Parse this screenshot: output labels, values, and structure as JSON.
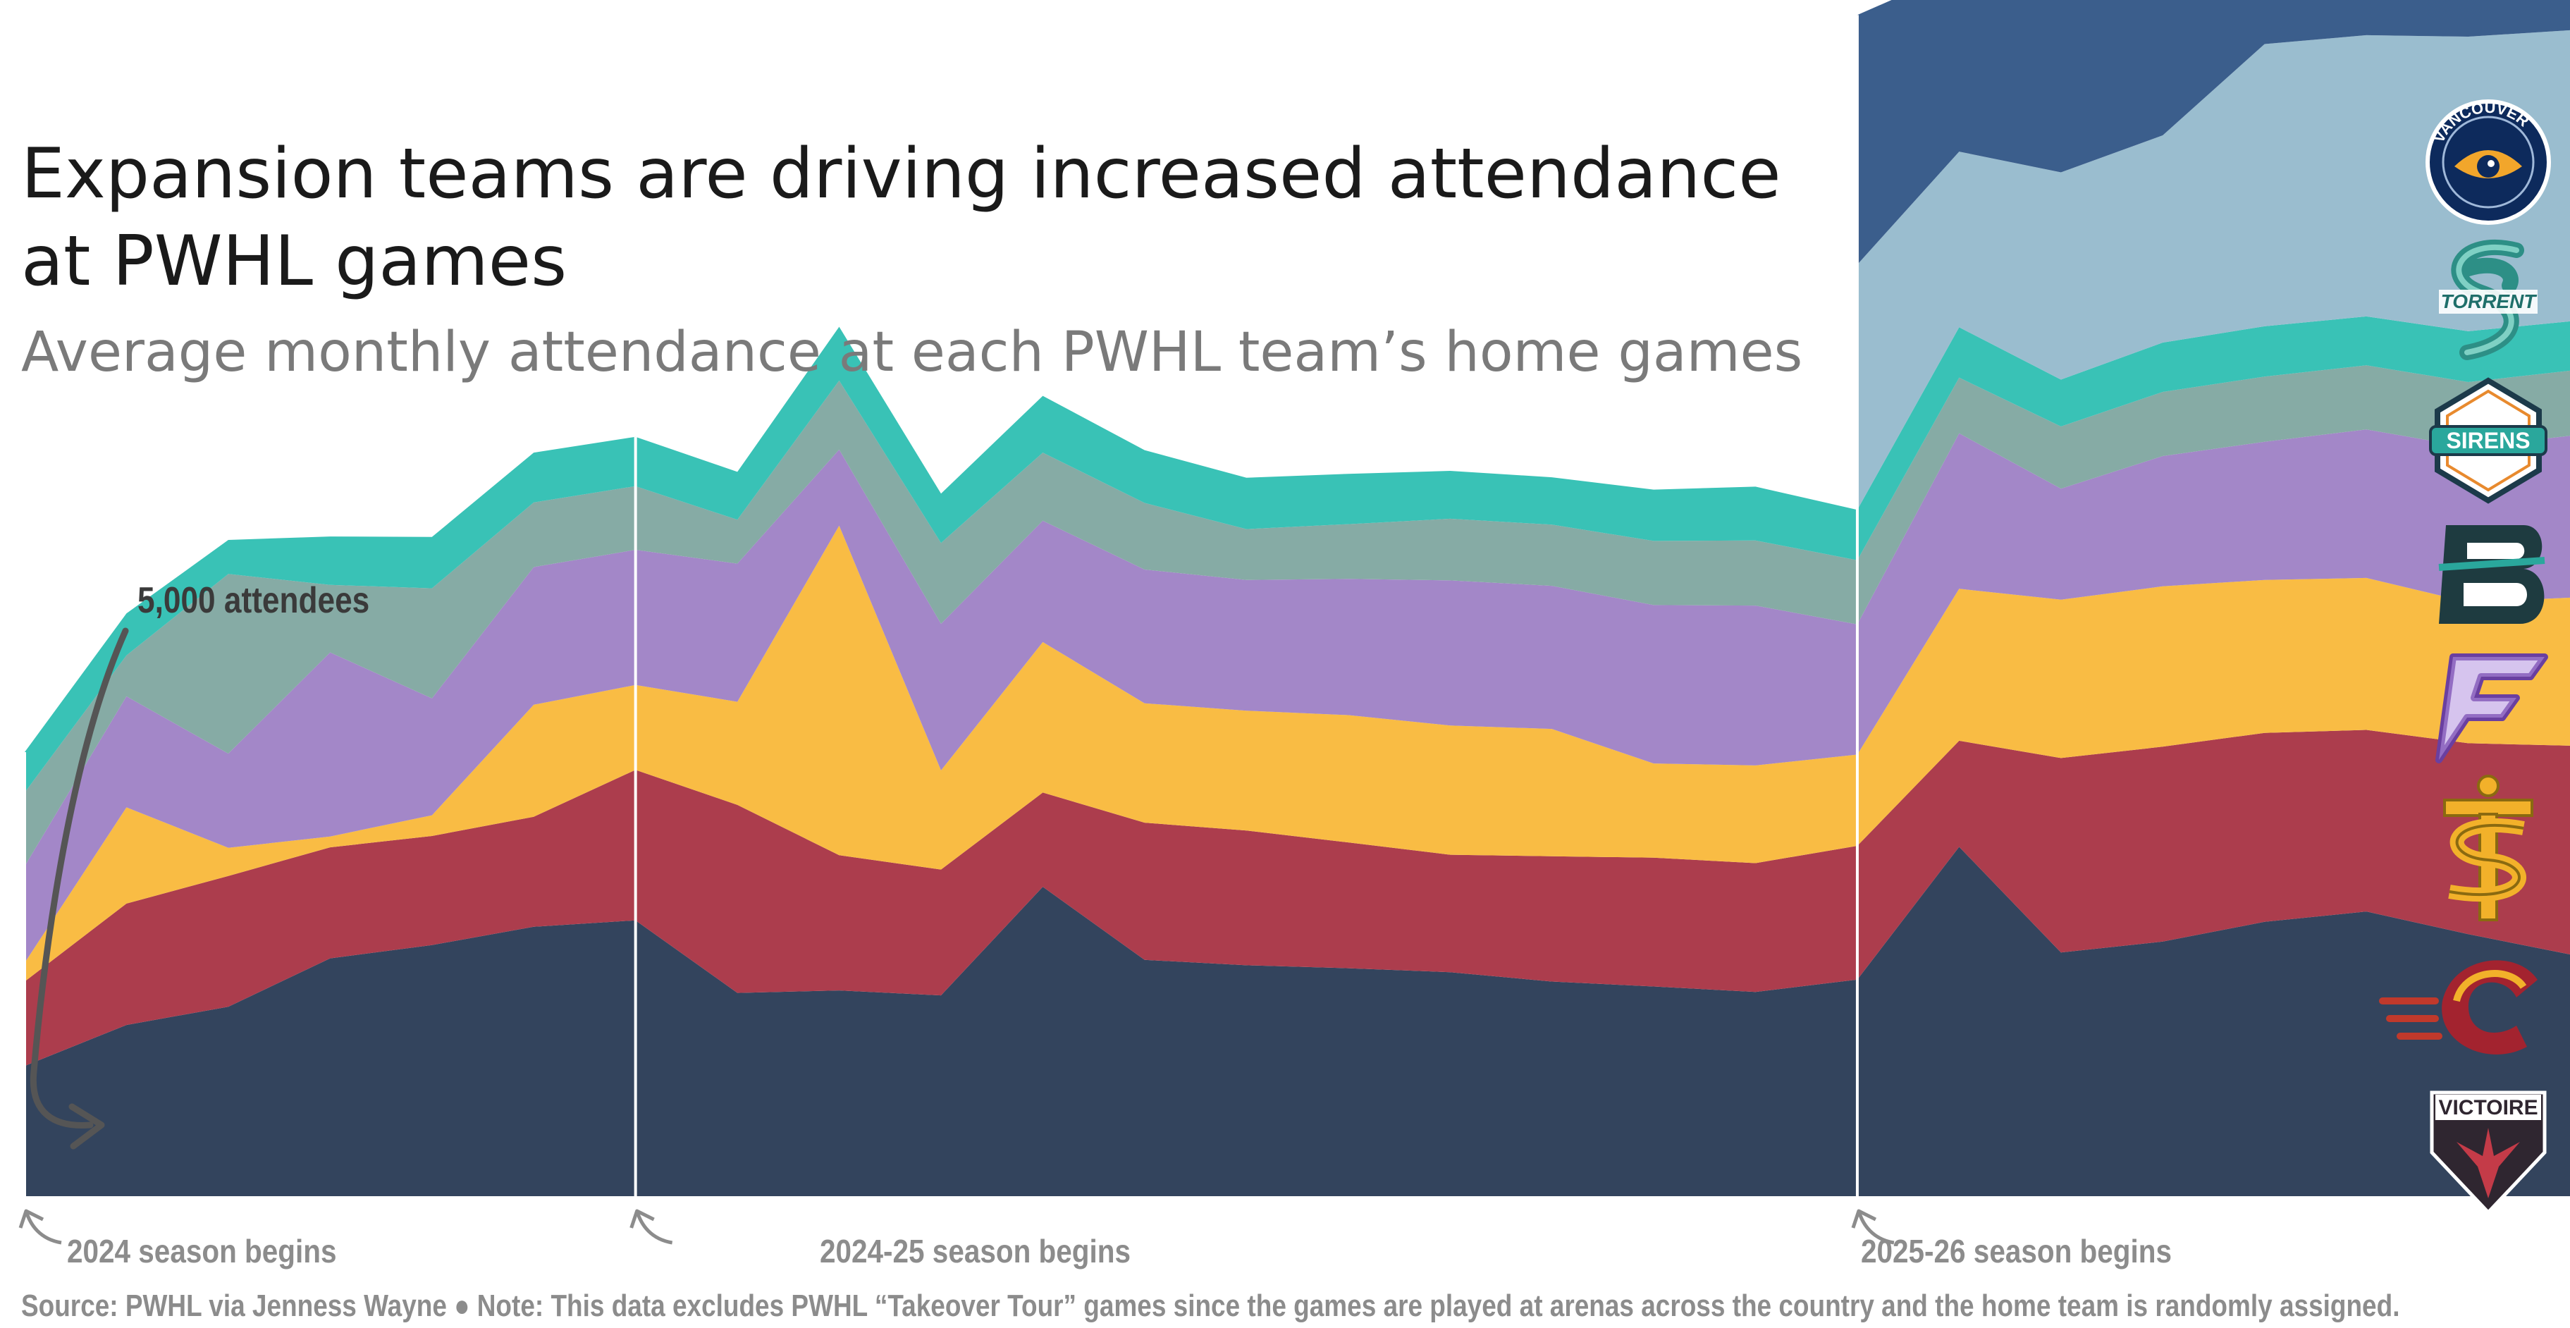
{
  "title": "Expansion teams are driving increased attendance at PWHL games",
  "subtitle": "Average monthly attendance at each PWHL team’s home games",
  "annotation": "5,000 attendees",
  "annotation_value": 5000,
  "season_labels": [
    "2024 season begins",
    "2024-25 season begins",
    "2025-26 season begins"
  ],
  "source": "Source: PWHL via Jenness Wayne ● Note: This data excludes PWHL “Takeover Tour” games since the games are played at arenas across the country and the home team is randomly assigned.",
  "colors": {
    "background": "#ffffff",
    "title": "#1a1a1a",
    "subtitle": "#7a7a7a",
    "muted": "#8c8c8c",
    "annotation": "#3a3a3a"
  },
  "team_logos": [
    {
      "text": "VANCOUVER GOLDENEYES",
      "icon": "goldeneyes-logo"
    },
    {
      "text": "TORRENT",
      "icon": "torrent-logo"
    },
    {
      "text": "SIRENS",
      "icon": "sirens-logo"
    },
    {
      "text": "",
      "icon": "boston-fleet-logo"
    },
    {
      "text": "",
      "icon": "minnesota-frost-logo"
    },
    {
      "text": "",
      "icon": "toronto-sceptres-logo"
    },
    {
      "text": "",
      "icon": "ottawa-charge-logo"
    },
    {
      "text": "VICTOIRE",
      "icon": "montreal-victoire-logo"
    }
  ],
  "chart_data": {
    "type": "area",
    "stacked": true,
    "x": [
      "2024 season begins",
      "",
      "",
      "",
      "",
      "",
      "2024-25 season begins",
      "",
      "",
      "",
      "",
      "",
      "",
      "",
      "",
      "",
      "",
      "",
      "2025-26 season begins",
      "",
      "",
      "",
      "",
      "",
      "",
      ""
    ],
    "season_starts": [
      0,
      6,
      18
    ],
    "series": [
      {
        "color": "#33445d",
        "values": [
          2640,
          3470,
          3840,
          4820,
          5090,
          5460,
          5590,
          4120,
          4170,
          4070,
          6270,
          4790,
          4680,
          4620,
          4540,
          4350,
          4250,
          4140,
          4390,
          7080,
          4940,
          5160,
          5560,
          5770,
          5310,
          4900
        ]
      },
      {
        "color": "#ac3d4d",
        "values": [
          1710,
          2460,
          2650,
          2250,
          2210,
          2230,
          3050,
          3810,
          2740,
          2550,
          1910,
          2780,
          2730,
          2550,
          2380,
          2540,
          2610,
          2610,
          2710,
          2150,
          3940,
          3950,
          3830,
          3680,
          3870,
          4230
        ]
      },
      {
        "color": "#f9bc44",
        "values": [
          380,
          1950,
          570,
          220,
          420,
          2270,
          1720,
          2090,
          6680,
          2010,
          3050,
          2420,
          2430,
          2580,
          2620,
          2580,
          1910,
          1980,
          1850,
          3080,
          3210,
          3250,
          3100,
          3080,
          2860,
          3000
        ]
      },
      {
        "color": "#a387c8",
        "values": [
          1960,
          2250,
          1910,
          3730,
          2370,
          2790,
          2740,
          2800,
          1540,
          2970,
          2460,
          2710,
          2650,
          2760,
          2940,
          2900,
          3210,
          3240,
          2640,
          3150,
          2250,
          2640,
          2800,
          3010,
          3140,
          3280
        ]
      },
      {
        "color": "#86aba5",
        "values": [
          1490,
          830,
          3640,
          1370,
          2230,
          1310,
          1290,
          890,
          1400,
          1640,
          1380,
          1350,
          1030,
          1110,
          1250,
          1240,
          1300,
          1320,
          1300,
          1130,
          1260,
          1300,
          1320,
          1300,
          1320,
          1320
        ]
      },
      {
        "color": "#39c2b6",
        "values": [
          820,
          850,
          690,
          980,
          1040,
          1010,
          1000,
          970,
          1090,
          1000,
          1150,
          1070,
          1040,
          1020,
          970,
          960,
          1040,
          1090,
          1020,
          1020,
          950,
          1000,
          1020,
          990,
          1030,
          1000
        ]
      },
      {
        "color": "#9abdcf",
        "values": [
          0,
          0,
          0,
          0,
          0,
          0,
          0,
          0,
          0,
          0,
          0,
          0,
          0,
          0,
          0,
          0,
          0,
          0,
          4970,
          3560,
          4200,
          4200,
          5720,
          5700,
          5970,
          5900
        ]
      },
      {
        "color": "#3b5e8c",
        "values": [
          0,
          0,
          0,
          0,
          0,
          0,
          0,
          0,
          0,
          0,
          0,
          0,
          0,
          0,
          0,
          0,
          0,
          0,
          5060,
          3670,
          4880,
          5140,
          4800,
          4600,
          4750,
          4580
        ]
      }
    ]
  }
}
